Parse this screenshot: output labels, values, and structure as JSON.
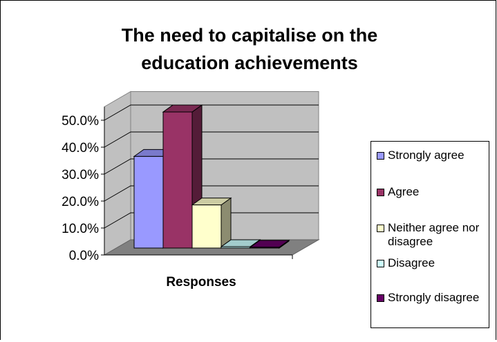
{
  "chart_data": {
    "type": "bar",
    "title": "The need to capitalise on the\neducation achievements",
    "xlabel": "Responses",
    "ylabel": "",
    "categories": [
      "Responses"
    ],
    "series": [
      {
        "name": "Strongly agree",
        "color": "#9999FF",
        "values": [
          34.0
        ]
      },
      {
        "name": "Agree",
        "color": "#993366",
        "values": [
          50.5
        ]
      },
      {
        "name": "Neither agree nor disagree",
        "color": "#FFFFCC",
        "values": [
          16.0
        ]
      },
      {
        "name": "Disagree",
        "color": "#CCFFFF",
        "values": [
          0.5
        ]
      },
      {
        "name": "Strongly disagree",
        "color": "#660066",
        "values": [
          0.3
        ]
      }
    ],
    "yticks": [
      "0.0%",
      "10.0%",
      "20.0%",
      "30.0%",
      "40.0%",
      "50.0%"
    ],
    "ylim": [
      0,
      55
    ],
    "grid": true,
    "legend": "right"
  }
}
